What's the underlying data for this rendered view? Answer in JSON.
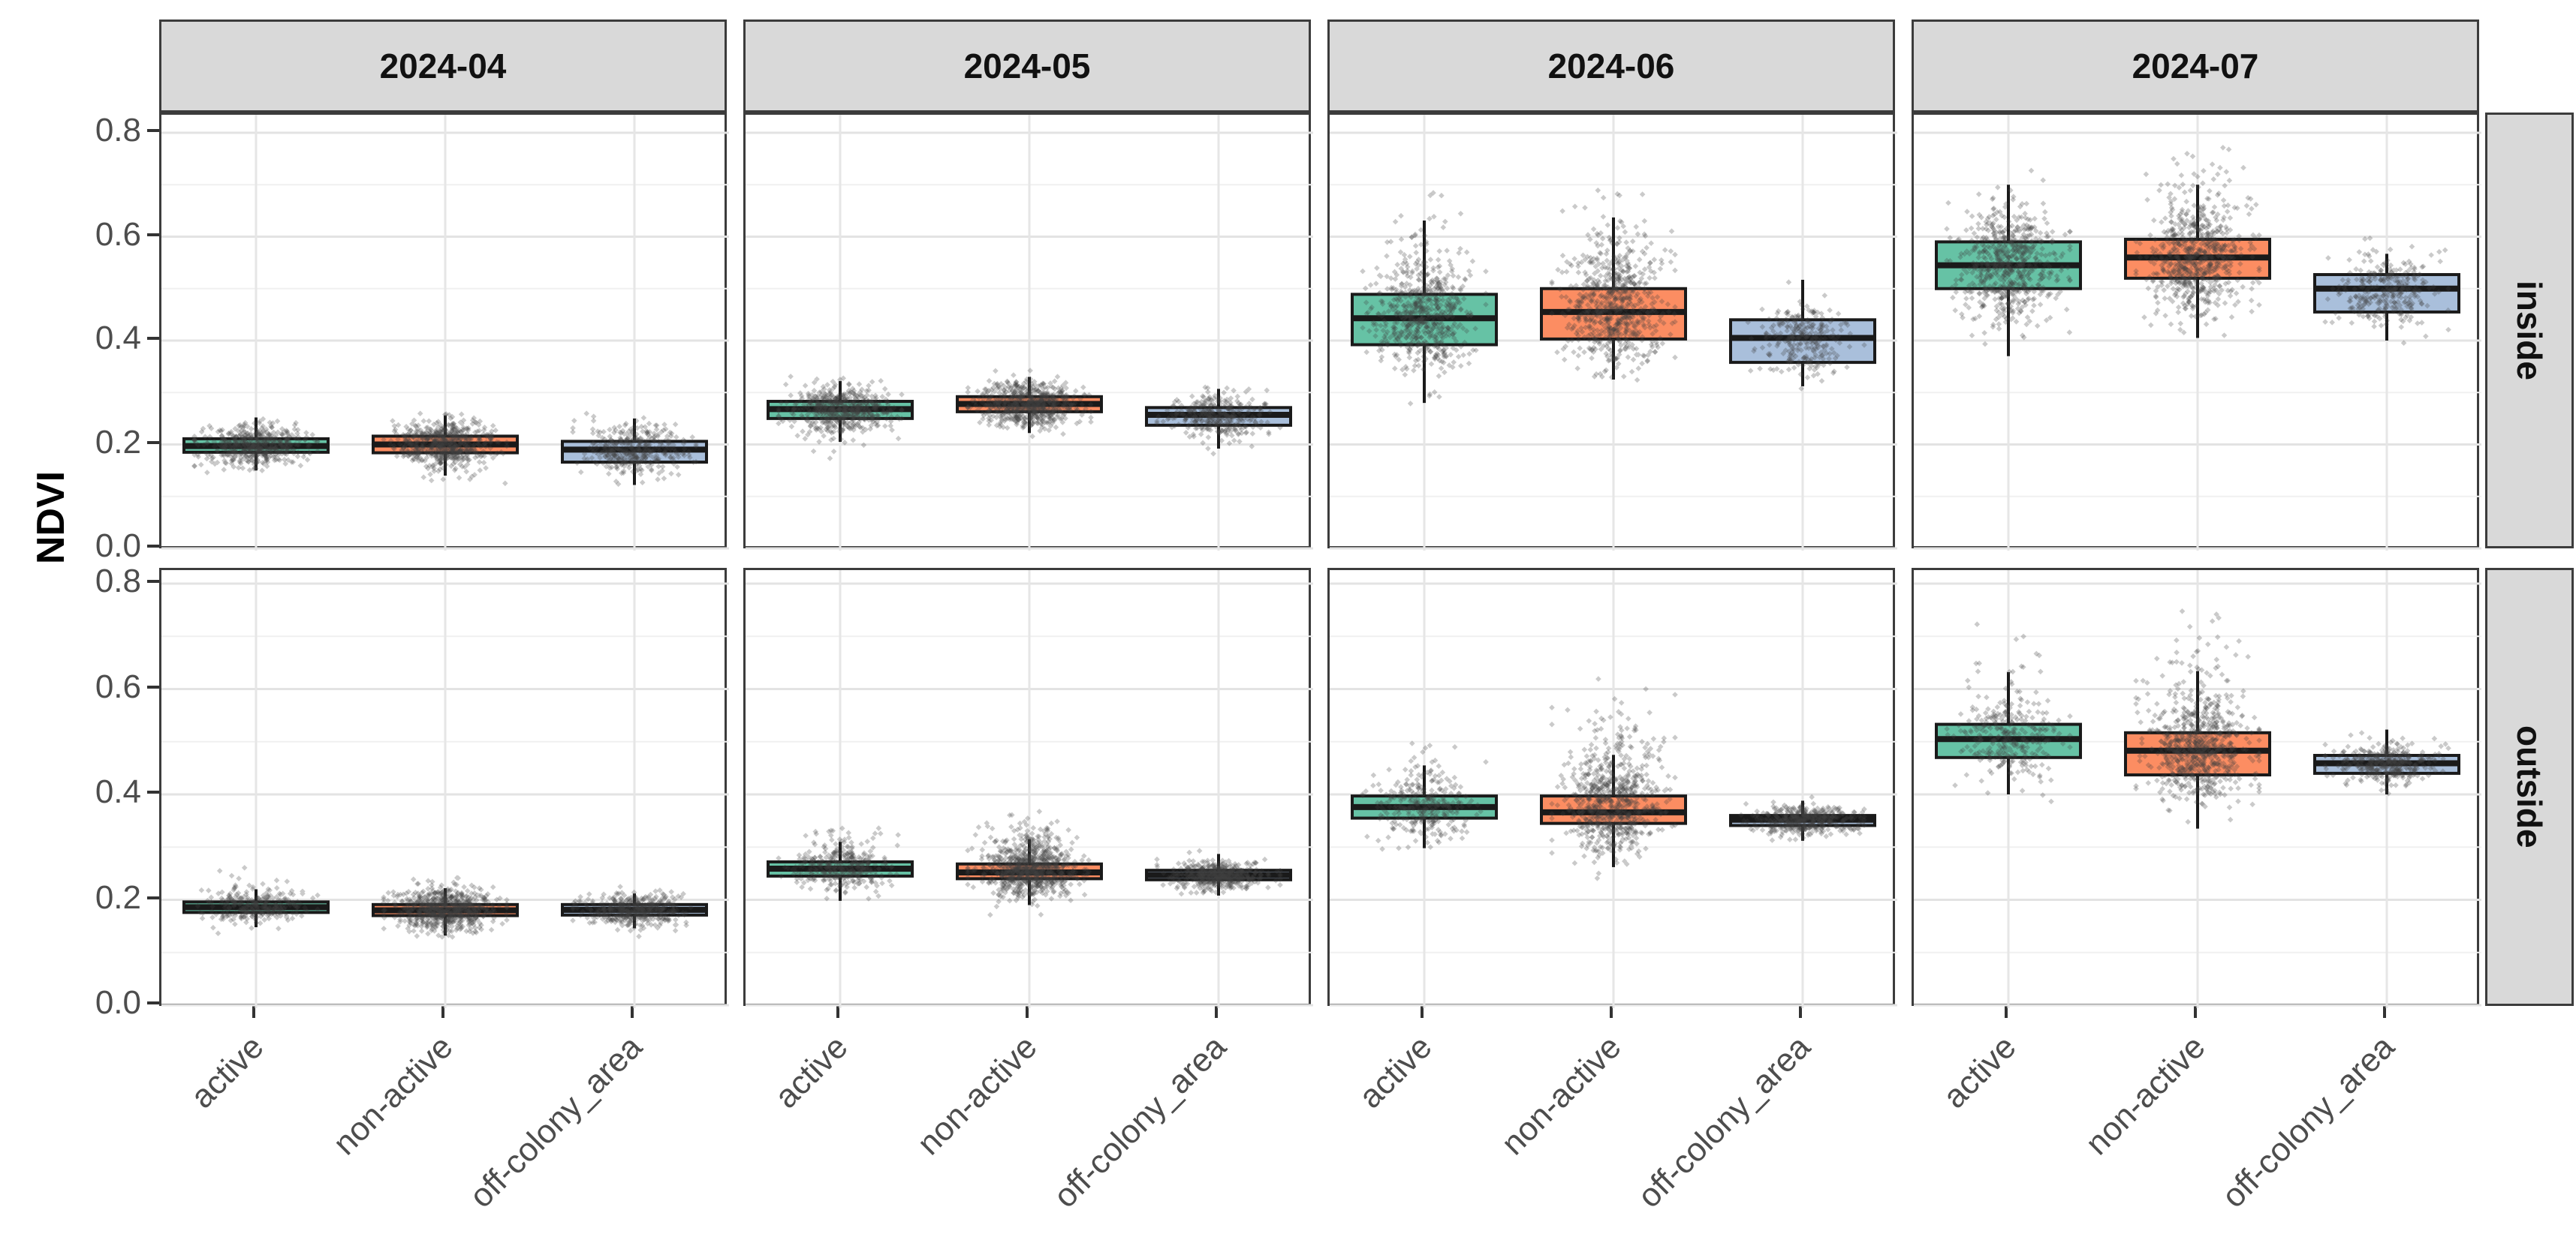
{
  "chart_data": {
    "type": "boxplot",
    "title": "",
    "ylabel": "NDVI",
    "grid": "on",
    "legend": "none",
    "ylim": [
      0,
      0.84
    ],
    "ytick_values": [
      0.8,
      0.6,
      0.4,
      0.2,
      0.0
    ],
    "ytick_labels": [
      "0.8",
      "0.6",
      "0.4",
      "0.2",
      "0.0"
    ],
    "col_facets": [
      "2024-04",
      "2024-05",
      "2024-06",
      "2024-07"
    ],
    "row_facets": [
      "inside",
      "outside"
    ],
    "categories": [
      "active",
      "non-active",
      "off-colony_area"
    ],
    "category_colors": {
      "active": "#66C2A5",
      "non-active": "#FC8D62",
      "off-colony_area": "#A9BFDB"
    },
    "point_color": "#404040",
    "panel_border_color": "#3c3c3c",
    "strip_bg_color": "#d9d9d9",
    "panels": [
      {
        "row": "inside",
        "col": "2024-04",
        "boxes": [
          {
            "category": "active",
            "whisker_low": 0.15,
            "q1": 0.185,
            "median": 0.197,
            "q3": 0.211,
            "whisker_high": 0.252,
            "points": {
              "n": 550,
              "mean": 0.198,
              "sd": 0.02,
              "min": 0.085,
              "max": 0.265,
              "skew": 0
            }
          },
          {
            "category": "non-active",
            "whisker_low": 0.14,
            "q1": 0.184,
            "median": 0.2,
            "q3": 0.216,
            "whisker_high": 0.256,
            "points": {
              "n": 650,
              "mean": 0.2,
              "sd": 0.022,
              "min": 0.075,
              "max": 0.27,
              "skew": 0
            }
          },
          {
            "category": "off-colony_area",
            "whisker_low": 0.122,
            "q1": 0.166,
            "median": 0.19,
            "q3": 0.206,
            "whisker_high": 0.25,
            "points": {
              "n": 400,
              "mean": 0.189,
              "sd": 0.024,
              "min": 0.1,
              "max": 0.262,
              "skew": 0
            }
          }
        ]
      },
      {
        "row": "inside",
        "col": "2024-05",
        "boxes": [
          {
            "category": "active",
            "whisker_low": 0.205,
            "q1": 0.25,
            "median": 0.268,
            "q3": 0.283,
            "whisker_high": 0.322,
            "points": {
              "n": 600,
              "mean": 0.267,
              "sd": 0.023,
              "min": 0.145,
              "max": 0.335,
              "skew": 0
            }
          },
          {
            "category": "non-active",
            "whisker_low": 0.222,
            "q1": 0.263,
            "median": 0.278,
            "q3": 0.292,
            "whisker_high": 0.33,
            "points": {
              "n": 700,
              "mean": 0.277,
              "sd": 0.023,
              "min": 0.165,
              "max": 0.345,
              "skew": 0
            }
          },
          {
            "category": "off-colony_area",
            "whisker_low": 0.192,
            "q1": 0.237,
            "median": 0.257,
            "q3": 0.271,
            "whisker_high": 0.307,
            "points": {
              "n": 350,
              "mean": 0.254,
              "sd": 0.022,
              "min": 0.175,
              "max": 0.315,
              "skew": 0
            }
          }
        ]
      },
      {
        "row": "inside",
        "col": "2024-06",
        "boxes": [
          {
            "category": "active",
            "whisker_low": 0.28,
            "q1": 0.392,
            "median": 0.443,
            "q3": 0.489,
            "whisker_high": 0.631,
            "points": {
              "n": 650,
              "mean": 0.443,
              "sd": 0.052,
              "min": 0.27,
              "max": 0.69,
              "skew": 0.08
            }
          },
          {
            "category": "non-active",
            "whisker_low": 0.325,
            "q1": 0.403,
            "median": 0.455,
            "q3": 0.5,
            "whisker_high": 0.637,
            "points": {
              "n": 700,
              "mean": 0.457,
              "sd": 0.055,
              "min": 0.285,
              "max": 0.705,
              "skew": 0.12
            }
          },
          {
            "category": "off-colony_area",
            "whisker_low": 0.312,
            "q1": 0.358,
            "median": 0.405,
            "q3": 0.44,
            "whisker_high": 0.517,
            "points": {
              "n": 280,
              "mean": 0.402,
              "sd": 0.036,
              "min": 0.3,
              "max": 0.53,
              "skew": 0
            }
          }
        ]
      },
      {
        "row": "inside",
        "col": "2024-07",
        "boxes": [
          {
            "category": "active",
            "whisker_low": 0.37,
            "q1": 0.5,
            "median": 0.545,
            "q3": 0.59,
            "whisker_high": 0.7,
            "points": {
              "n": 650,
              "mean": 0.543,
              "sd": 0.055,
              "min": 0.33,
              "max": 0.755,
              "skew": 0
            }
          },
          {
            "category": "non-active",
            "whisker_low": 0.405,
            "q1": 0.52,
            "median": 0.56,
            "q3": 0.595,
            "whisker_high": 0.7,
            "points": {
              "n": 700,
              "mean": 0.553,
              "sd": 0.052,
              "min": 0.385,
              "max": 0.775,
              "skew": 0.1
            }
          },
          {
            "category": "off-colony_area",
            "whisker_low": 0.4,
            "q1": 0.455,
            "median": 0.5,
            "q3": 0.527,
            "whisker_high": 0.567,
            "points": {
              "n": 320,
              "mean": 0.497,
              "sd": 0.033,
              "min": 0.39,
              "max": 0.6,
              "skew": 0
            }
          }
        ]
      },
      {
        "row": "outside",
        "col": "2024-04",
        "boxes": [
          {
            "category": "active",
            "whisker_low": 0.148,
            "q1": 0.176,
            "median": 0.186,
            "q3": 0.196,
            "whisker_high": 0.22,
            "points": {
              "n": 300,
              "mean": 0.186,
              "sd": 0.016,
              "min": 0.13,
              "max": 0.262,
              "skew": 0.05
            }
          },
          {
            "category": "non-active",
            "whisker_low": 0.132,
            "q1": 0.17,
            "median": 0.18,
            "q3": 0.191,
            "whisker_high": 0.222,
            "points": {
              "n": 750,
              "mean": 0.181,
              "sd": 0.02,
              "min": 0.085,
              "max": 0.25,
              "skew": 0
            }
          },
          {
            "category": "off-colony_area",
            "whisker_low": 0.146,
            "q1": 0.171,
            "median": 0.181,
            "q3": 0.191,
            "whisker_high": 0.212,
            "points": {
              "n": 450,
              "mean": 0.181,
              "sd": 0.015,
              "min": 0.125,
              "max": 0.24,
              "skew": 0
            }
          }
        ]
      },
      {
        "row": "outside",
        "col": "2024-05",
        "boxes": [
          {
            "category": "active",
            "whisker_low": 0.198,
            "q1": 0.245,
            "median": 0.259,
            "q3": 0.272,
            "whisker_high": 0.31,
            "points": {
              "n": 380,
              "mean": 0.259,
              "sd": 0.021,
              "min": 0.17,
              "max": 0.35,
              "skew": 0.1
            }
          },
          {
            "category": "non-active",
            "whisker_low": 0.19,
            "q1": 0.24,
            "median": 0.252,
            "q3": 0.268,
            "whisker_high": 0.315,
            "points": {
              "n": 850,
              "mean": 0.254,
              "sd": 0.024,
              "min": 0.16,
              "max": 0.37,
              "skew": 0.12
            }
          },
          {
            "category": "off-colony_area",
            "whisker_low": 0.208,
            "q1": 0.238,
            "median": 0.247,
            "q3": 0.256,
            "whisker_high": 0.287,
            "points": {
              "n": 500,
              "mean": 0.247,
              "sd": 0.013,
              "min": 0.19,
              "max": 0.3,
              "skew": 0
            }
          }
        ]
      },
      {
        "row": "outside",
        "col": "2024-06",
        "boxes": [
          {
            "category": "active",
            "whisker_low": 0.298,
            "q1": 0.355,
            "median": 0.376,
            "q3": 0.397,
            "whisker_high": 0.455,
            "points": {
              "n": 320,
              "mean": 0.377,
              "sd": 0.03,
              "min": 0.27,
              "max": 0.5,
              "skew": 0.1
            }
          },
          {
            "category": "non-active",
            "whisker_low": 0.262,
            "q1": 0.345,
            "median": 0.366,
            "q3": 0.397,
            "whisker_high": 0.475,
            "points": {
              "n": 750,
              "mean": 0.372,
              "sd": 0.04,
              "min": 0.24,
              "max": 0.655,
              "skew": 0.25
            }
          },
          {
            "category": "off-colony_area",
            "whisker_low": 0.312,
            "q1": 0.341,
            "median": 0.352,
            "q3": 0.36,
            "whisker_high": 0.388,
            "points": {
              "n": 450,
              "mean": 0.351,
              "sd": 0.014,
              "min": 0.29,
              "max": 0.42,
              "skew": 0
            }
          }
        ]
      },
      {
        "row": "outside",
        "col": "2024-07",
        "boxes": [
          {
            "category": "active",
            "whisker_low": 0.4,
            "q1": 0.47,
            "median": 0.505,
            "q3": 0.533,
            "whisker_high": 0.632,
            "points": {
              "n": 320,
              "mean": 0.505,
              "sd": 0.036,
              "min": 0.37,
              "max": 0.79,
              "skew": 0.12
            }
          },
          {
            "category": "non-active",
            "whisker_low": 0.335,
            "q1": 0.437,
            "median": 0.483,
            "q3": 0.517,
            "whisker_high": 0.634,
            "points": {
              "n": 750,
              "mean": 0.482,
              "sd": 0.048,
              "min": 0.3,
              "max": 0.755,
              "skew": 0.12
            }
          },
          {
            "category": "off-colony_area",
            "whisker_low": 0.4,
            "q1": 0.44,
            "median": 0.459,
            "q3": 0.474,
            "whisker_high": 0.523,
            "points": {
              "n": 400,
              "mean": 0.459,
              "sd": 0.018,
              "min": 0.395,
              "max": 0.56,
              "skew": 0
            }
          }
        ]
      }
    ]
  }
}
